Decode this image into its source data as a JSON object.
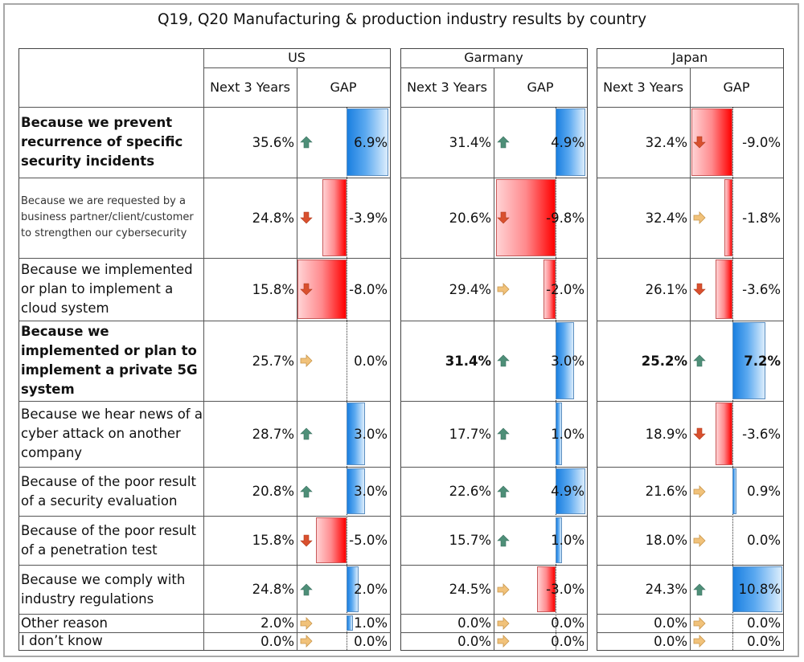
{
  "title": "Q19, Q20 Manufacturing & production industry results by country",
  "header": {
    "next_label": "Next 3 Years",
    "gap_label": "GAP"
  },
  "colors": {
    "positive_bar": "#1a7fe0",
    "negative_bar": "#ff0000",
    "arrow_up": "#4e8f78",
    "arrow_down": "#d9502e",
    "arrow_flat": "#e8b86a"
  },
  "chart_data": {
    "type": "table",
    "title": "Q19, Q20 Manufacturing & production industry results by country",
    "countries": [
      "US",
      "Garmany",
      "Japan"
    ],
    "columns": [
      "Next 3 Years",
      "GAP"
    ],
    "rows": [
      {
        "label": "Because we prevent recurrence of specific security incidents",
        "style": "bold",
        "US": {
          "next": "35.6%",
          "trend": "up",
          "gap": 6.9,
          "gap_text": "6.9%"
        },
        "Garmany": {
          "next": "31.4%",
          "trend": "up",
          "gap": 4.9,
          "gap_text": "4.9%"
        },
        "Japan": {
          "next": "32.4%",
          "trend": "down",
          "gap": -9.0,
          "gap_text": "-9.0%"
        }
      },
      {
        "label": "Because we are requested by a business partner/client/customer to strengthen our cybersecurity",
        "style": "small",
        "US": {
          "next": "24.8%",
          "trend": "down",
          "gap": -3.9,
          "gap_text": "-3.9%"
        },
        "Garmany": {
          "next": "20.6%",
          "trend": "down",
          "gap": -9.8,
          "gap_text": "-9.8%"
        },
        "Japan": {
          "next": "32.4%",
          "trend": "flat",
          "gap": -1.8,
          "gap_text": "-1.8%"
        }
      },
      {
        "label": "Because we implemented or plan to implement a cloud system",
        "style": "normal",
        "US": {
          "next": "15.8%",
          "trend": "down",
          "gap": -8.0,
          "gap_text": "-8.0%"
        },
        "Garmany": {
          "next": "29.4%",
          "trend": "flat",
          "gap": -2.0,
          "gap_text": "-2.0%"
        },
        "Japan": {
          "next": "26.1%",
          "trend": "down",
          "gap": -3.6,
          "gap_text": "-3.6%"
        }
      },
      {
        "label": "Because we implemented or plan to implement a private 5G system",
        "style": "bold",
        "US": {
          "next": "25.7%",
          "trend": "flat",
          "gap": 0.0,
          "gap_text": "0.0%"
        },
        "Garmany": {
          "next": "31.4%",
          "trend": "up",
          "gap": 3.0,
          "gap_text": "3.0%",
          "bold_next": true
        },
        "Japan": {
          "next": "25.2%",
          "trend": "up",
          "gap": 7.2,
          "gap_text": "7.2%",
          "bold_next": true,
          "bold_gap": true
        }
      },
      {
        "label": "Because we hear news of a cyber attack on another company",
        "style": "normal",
        "US": {
          "next": "28.7%",
          "trend": "up",
          "gap": 3.0,
          "gap_text": "3.0%"
        },
        "Garmany": {
          "next": "17.7%",
          "trend": "up",
          "gap": 1.0,
          "gap_text": "1.0%"
        },
        "Japan": {
          "next": "18.9%",
          "trend": "down",
          "gap": -3.6,
          "gap_text": "-3.6%"
        }
      },
      {
        "label": "Because of the poor result of a security evaluation",
        "style": "normal",
        "US": {
          "next": "20.8%",
          "trend": "up",
          "gap": 3.0,
          "gap_text": "3.0%"
        },
        "Garmany": {
          "next": "22.6%",
          "trend": "up",
          "gap": 4.9,
          "gap_text": "4.9%"
        },
        "Japan": {
          "next": "21.6%",
          "trend": "flat",
          "gap": 0.9,
          "gap_text": "0.9%"
        }
      },
      {
        "label": "Because of the poor result of a penetration test",
        "style": "normal",
        "US": {
          "next": "15.8%",
          "trend": "down",
          "gap": -5.0,
          "gap_text": "-5.0%"
        },
        "Garmany": {
          "next": "15.7%",
          "trend": "up",
          "gap": 1.0,
          "gap_text": "1.0%"
        },
        "Japan": {
          "next": "18.0%",
          "trend": "flat",
          "gap": 0.0,
          "gap_text": "0.0%"
        }
      },
      {
        "label": "Because we comply with industry regulations",
        "style": "normal",
        "US": {
          "next": "24.8%",
          "trend": "up",
          "gap": 2.0,
          "gap_text": "2.0%"
        },
        "Garmany": {
          "next": "24.5%",
          "trend": "flat",
          "gap": -3.0,
          "gap_text": "-3.0%"
        },
        "Japan": {
          "next": "24.3%",
          "trend": "up",
          "gap": 10.8,
          "gap_text": "10.8%"
        }
      },
      {
        "label": "Other reason",
        "style": "normal",
        "US": {
          "next": "2.0%",
          "trend": "flat",
          "gap": 1.0,
          "gap_text": "1.0%"
        },
        "Garmany": {
          "next": "0.0%",
          "trend": "flat",
          "gap": 0.0,
          "gap_text": "0.0%"
        },
        "Japan": {
          "next": "0.0%",
          "trend": "flat",
          "gap": 0.0,
          "gap_text": "0.0%"
        }
      },
      {
        "label": "I don’t know",
        "style": "normal",
        "US": {
          "next": "0.0%",
          "trend": "flat",
          "gap": 0.0,
          "gap_text": "0.0%"
        },
        "Garmany": {
          "next": "0.0%",
          "trend": "flat",
          "gap": 0.0,
          "gap_text": "0.0%"
        },
        "Japan": {
          "next": "0.0%",
          "trend": "flat",
          "gap": 0.0,
          "gap_text": "0.0%"
        }
      }
    ]
  }
}
